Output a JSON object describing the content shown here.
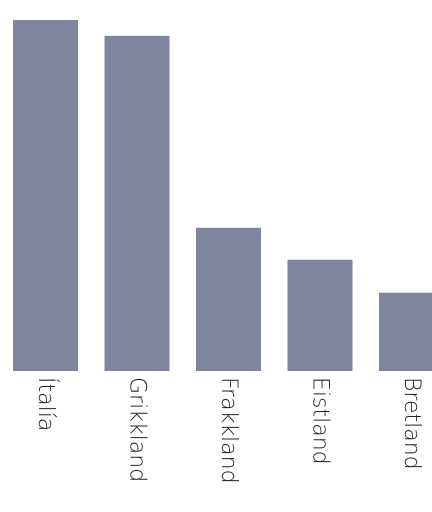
{
  "chart_data": {
    "type": "bar",
    "categories": [
      "Ítalía",
      "Grikkland",
      "Frakkland",
      "Eistland",
      "Bretland"
    ],
    "values": [
      100,
      95.5,
      40.8,
      31.7,
      22.3
    ],
    "title": "",
    "xlabel": "",
    "ylabel": "",
    "ylim": [
      0,
      100
    ],
    "grid": false,
    "legend": "none",
    "bar_color": "#7f859d",
    "label_orientation": "rotated-90-clockwise"
  }
}
